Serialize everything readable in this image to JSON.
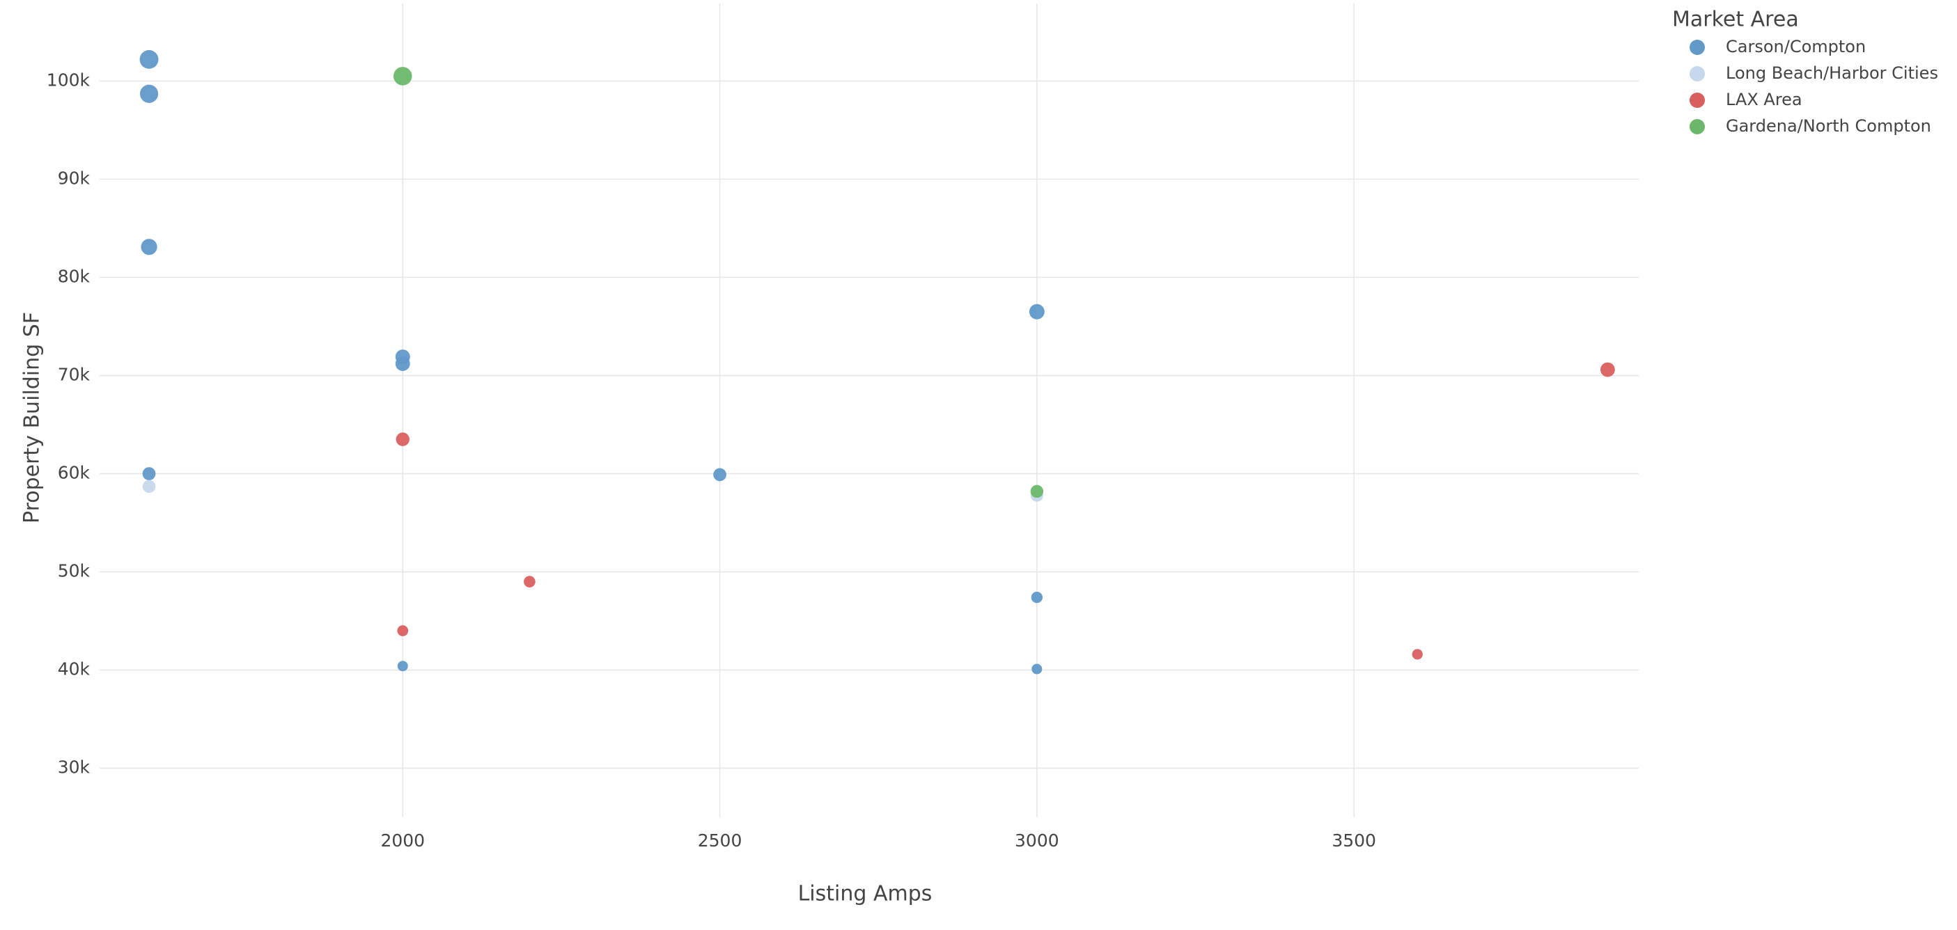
{
  "chart_data": {
    "type": "scatter",
    "x_label": "Listing Amps",
    "y_label": "Property Building SF",
    "legend_title": "Market Area",
    "legend_position": "right",
    "grid": true,
    "xlim": [
      1522,
      3949
    ],
    "ylim": [
      25000,
      107900
    ],
    "xticks": [
      2000,
      2500,
      3000,
      3500
    ],
    "yticks": [
      {
        "value": 30000,
        "label": "30k"
      },
      {
        "value": 40000,
        "label": "40k"
      },
      {
        "value": 50000,
        "label": "50k"
      },
      {
        "value": 60000,
        "label": "60k"
      },
      {
        "value": 70000,
        "label": "70k"
      },
      {
        "value": 80000,
        "label": "80k"
      },
      {
        "value": 90000,
        "label": "90k"
      },
      {
        "value": 100000,
        "label": "100k"
      }
    ],
    "series": [
      {
        "name": "Carson/Compton",
        "color": "#6199c9",
        "x": [
          1600,
          1600,
          1600,
          2000,
          2000,
          3000,
          1600,
          2500,
          3000,
          2000,
          3000
        ],
        "values": [
          102200,
          98700,
          83100,
          71900,
          71200,
          76500,
          60000,
          59900,
          47400,
          40400,
          40100
        ]
      },
      {
        "name": "Long Beach/Harbor Cities",
        "color": "#c6d8ec",
        "x": [
          1600,
          3000
        ],
        "values": [
          58700,
          57800
        ]
      },
      {
        "name": "LAX Area",
        "color": "#d95f5f",
        "x": [
          2000,
          2200,
          2000,
          3600,
          3900
        ],
        "values": [
          63500,
          49000,
          44000,
          41600,
          70600
        ]
      },
      {
        "name": "Gardena/North Compton",
        "color": "#6bb86b",
        "x": [
          2000,
          3000
        ],
        "values": [
          100500,
          58200
        ]
      }
    ]
  }
}
